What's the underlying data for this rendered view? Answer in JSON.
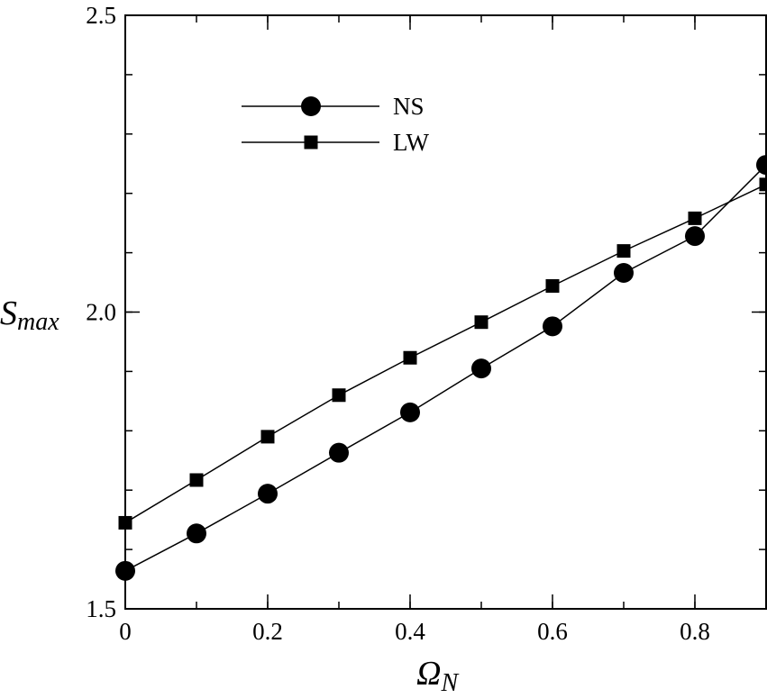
{
  "chart_data": {
    "type": "line",
    "title": "",
    "xlabel": {
      "main": "Ω",
      "sub": "N"
    },
    "ylabel": {
      "main": "S",
      "sub": "max"
    },
    "xlim": [
      0,
      0.9
    ],
    "ylim": [
      1.5,
      2.5
    ],
    "x_ticks": [
      0,
      0.2,
      0.4,
      0.6,
      0.8
    ],
    "x_tick_labels": [
      "0",
      "0.2",
      "0.4",
      "0.6",
      "0.8"
    ],
    "x_minor_step": 0.1,
    "y_ticks": [
      1.5,
      2.0,
      2.5
    ],
    "y_tick_labels": [
      "1.5",
      "2.0",
      "2.5"
    ],
    "y_minor_step": 0.1,
    "grid": false,
    "legend_position": "top-left",
    "series": [
      {
        "name": "NS",
        "marker": "circle",
        "color": "#000000",
        "x": [
          0,
          0.1,
          0.2,
          0.3,
          0.4,
          0.5,
          0.6,
          0.7,
          0.8,
          0.9
        ],
        "y": [
          1.564,
          1.627,
          1.694,
          1.763,
          1.831,
          1.905,
          1.976,
          2.066,
          2.128,
          2.248
        ]
      },
      {
        "name": "LW",
        "marker": "square",
        "color": "#000000",
        "x": [
          0,
          0.1,
          0.2,
          0.3,
          0.4,
          0.5,
          0.6,
          0.7,
          0.8,
          0.9
        ],
        "y": [
          1.645,
          1.717,
          1.79,
          1.86,
          1.923,
          1.983,
          2.044,
          2.103,
          2.158,
          2.215
        ]
      }
    ]
  }
}
